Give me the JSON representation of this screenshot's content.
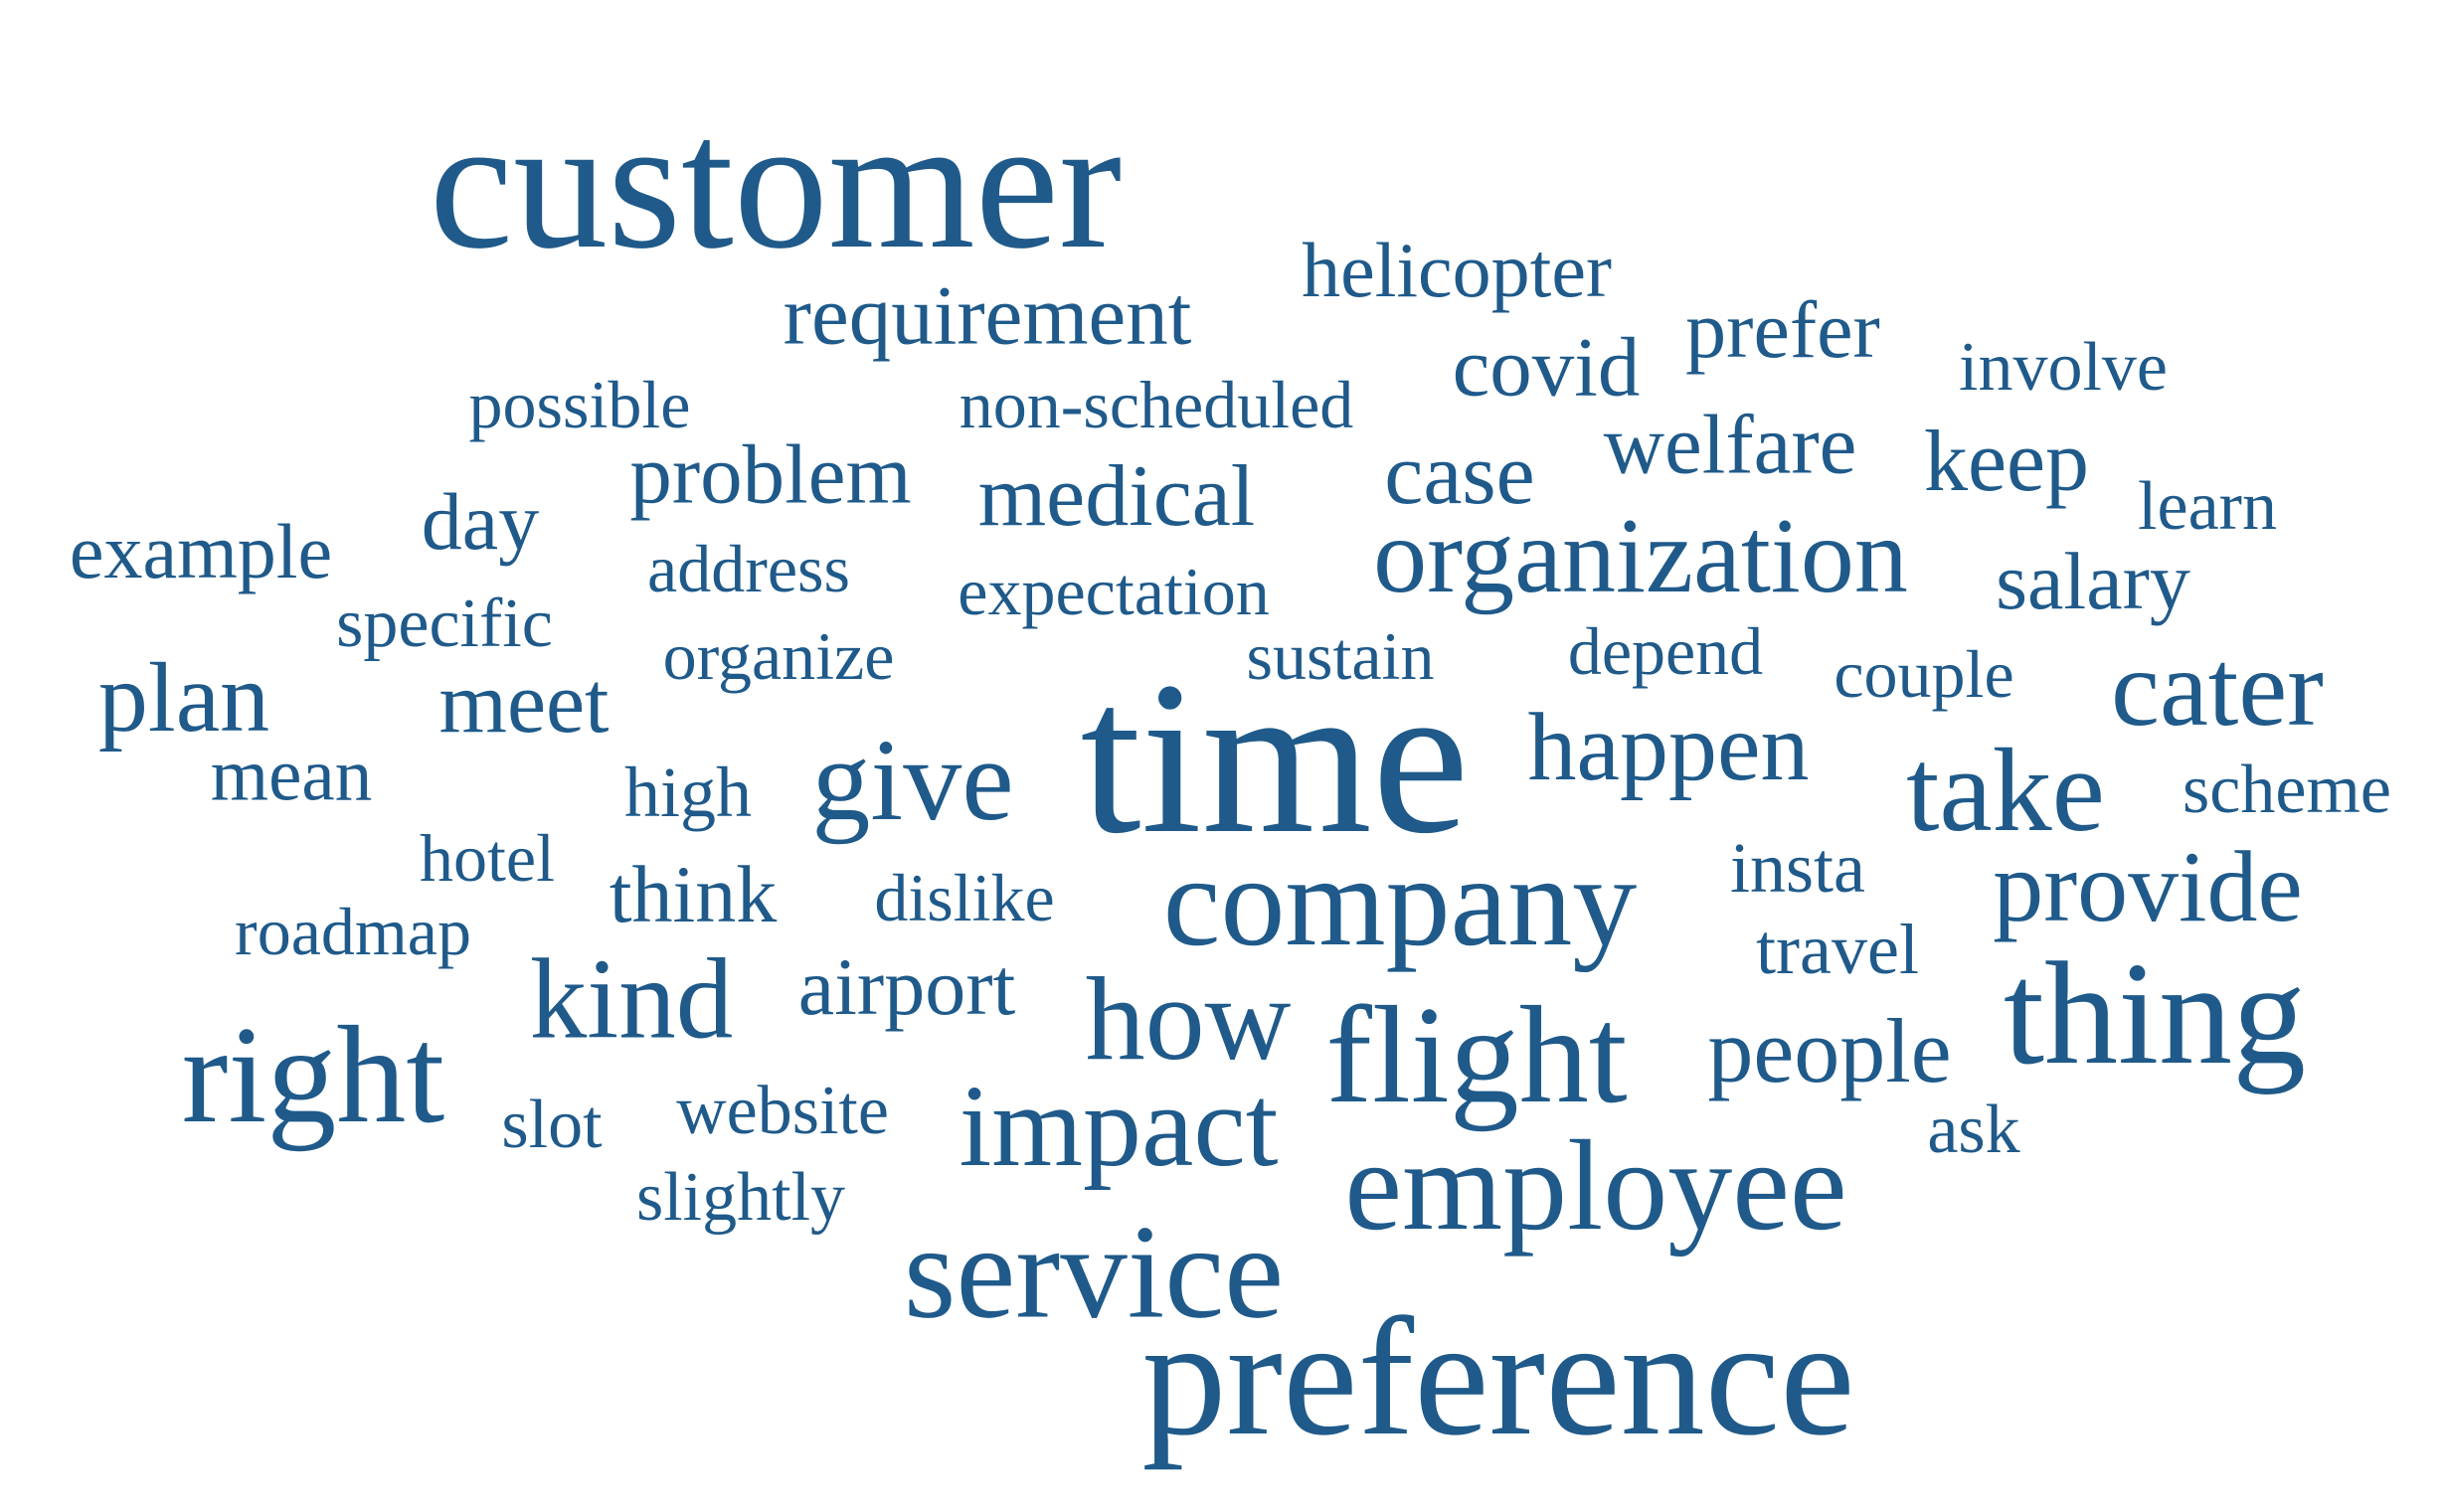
{
  "color": "#1f5a8a",
  "words": [
    {
      "text": "customer",
      "weight": 5
    },
    {
      "text": "helicopter",
      "weight": 2
    },
    {
      "text": "requirement",
      "weight": 2
    },
    {
      "text": "covid",
      "weight": 2
    },
    {
      "text": "prefer",
      "weight": 2
    },
    {
      "text": "involve",
      "weight": 1
    },
    {
      "text": "possible",
      "weight": 1
    },
    {
      "text": "non-scheduled",
      "weight": 1
    },
    {
      "text": "problem",
      "weight": 2
    },
    {
      "text": "medical",
      "weight": 2
    },
    {
      "text": "case",
      "weight": 2
    },
    {
      "text": "welfare",
      "weight": 2
    },
    {
      "text": "keep",
      "weight": 2
    },
    {
      "text": "learn",
      "weight": 1
    },
    {
      "text": "example",
      "weight": 2
    },
    {
      "text": "day",
      "weight": 2
    },
    {
      "text": "address",
      "weight": 1
    },
    {
      "text": "expectation",
      "weight": 1
    },
    {
      "text": "organization",
      "weight": 3
    },
    {
      "text": "salary",
      "weight": 2
    },
    {
      "text": "specific",
      "weight": 1
    },
    {
      "text": "organize",
      "weight": 1
    },
    {
      "text": "sustain",
      "weight": 1
    },
    {
      "text": "depend",
      "weight": 1
    },
    {
      "text": "couple",
      "weight": 1
    },
    {
      "text": "cater",
      "weight": 3
    },
    {
      "text": "plan",
      "weight": 3
    },
    {
      "text": "meet",
      "weight": 2
    },
    {
      "text": "time",
      "weight": 6
    },
    {
      "text": "happen",
      "weight": 3
    },
    {
      "text": "give",
      "weight": 3
    },
    {
      "text": "mean",
      "weight": 2
    },
    {
      "text": "high",
      "weight": 1
    },
    {
      "text": "take",
      "weight": 3
    },
    {
      "text": "scheme",
      "weight": 1
    },
    {
      "text": "hotel",
      "weight": 1
    },
    {
      "text": "think",
      "weight": 2
    },
    {
      "text": "dislike",
      "weight": 1
    },
    {
      "text": "company",
      "weight": 4
    },
    {
      "text": "insta",
      "weight": 1
    },
    {
      "text": "provide",
      "weight": 3
    },
    {
      "text": "roadmap",
      "weight": 1
    },
    {
      "text": "travel",
      "weight": 1
    },
    {
      "text": "kind",
      "weight": 3
    },
    {
      "text": "airport",
      "weight": 2
    },
    {
      "text": "how",
      "weight": 4
    },
    {
      "text": "thing",
      "weight": 4
    },
    {
      "text": "right",
      "weight": 4
    },
    {
      "text": "flight",
      "weight": 4
    },
    {
      "text": "people",
      "weight": 2
    },
    {
      "text": "slot",
      "weight": 1
    },
    {
      "text": "website",
      "weight": 1
    },
    {
      "text": "impact",
      "weight": 3
    },
    {
      "text": "ask",
      "weight": 1
    },
    {
      "text": "slightly",
      "weight": 1
    },
    {
      "text": "employee",
      "weight": 4
    },
    {
      "text": "service",
      "weight": 4
    },
    {
      "text": "preference",
      "weight": 5
    }
  ]
}
